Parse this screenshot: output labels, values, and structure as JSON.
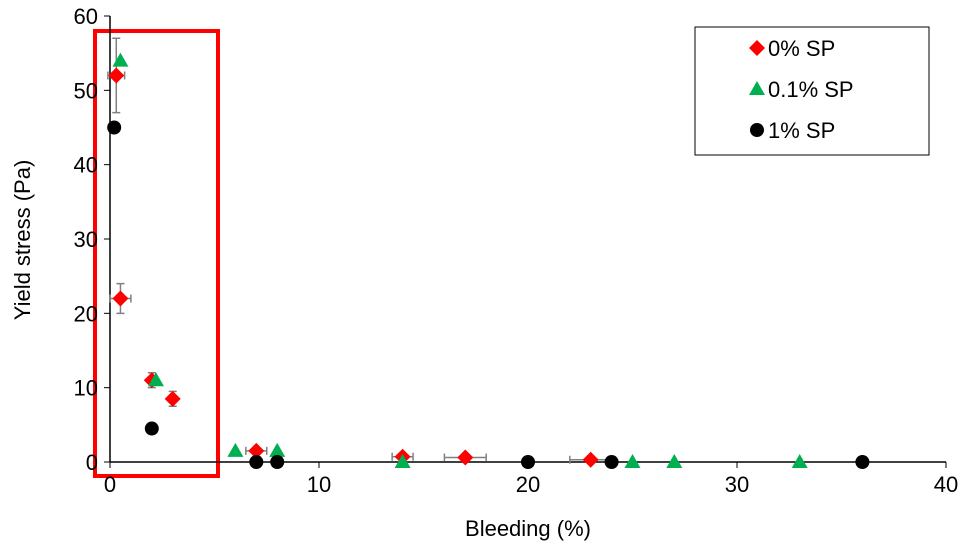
{
  "chart_data": {
    "type": "scatter",
    "xlabel": "Bleeding (%)",
    "ylabel": "Yield stress (Pa)",
    "xlim": [
      0,
      40
    ],
    "xticks": [
      0,
      10,
      20,
      30,
      40
    ],
    "ylim": [
      0,
      60
    ],
    "yticks": [
      0,
      10,
      20,
      30,
      40,
      50,
      60
    ],
    "legend": "upper right",
    "series": [
      {
        "name": "0% SP",
        "color": "#ff0000",
        "marker": "diamond",
        "x": [
          0.3,
          0.5,
          2,
          3,
          7,
          14,
          17,
          23
        ],
        "values": [
          52,
          22,
          11,
          8.5,
          1.5,
          0.7,
          0.6,
          0.3
        ],
        "yerr": [
          5,
          2,
          1,
          1,
          null,
          null,
          null,
          null
        ],
        "xerr": [
          0.4,
          0.5,
          null,
          null,
          0.5,
          0.5,
          1,
          1
        ]
      },
      {
        "name": "0.1% SP",
        "color": "#00b050",
        "marker": "triangle",
        "x": [
          0.5,
          2.2,
          6,
          8,
          14,
          25,
          27,
          33
        ],
        "values": [
          54,
          11,
          1.5,
          1.5,
          0,
          0,
          0,
          0
        ]
      },
      {
        "name": "1% SP",
        "color": "#000000",
        "marker": "circle",
        "x": [
          0.2,
          2,
          7,
          8,
          20,
          24,
          36
        ],
        "values": [
          45,
          4.5,
          0,
          0,
          0,
          0,
          0
        ]
      }
    ]
  }
}
